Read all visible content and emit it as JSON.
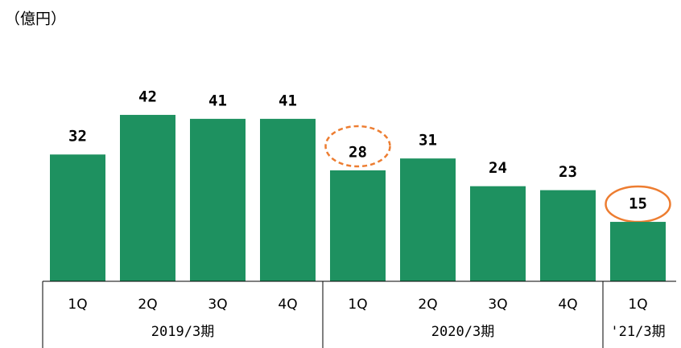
{
  "chart_data": {
    "type": "bar",
    "unit_label": "（億円）",
    "categories": [
      "1Q",
      "2Q",
      "3Q",
      "4Q",
      "1Q",
      "2Q",
      "3Q",
      "4Q",
      "1Q"
    ],
    "values": [
      32,
      42,
      41,
      41,
      28,
      31,
      24,
      23,
      15
    ],
    "groups": [
      {
        "label": "2019/3期",
        "span": [
          0,
          3
        ]
      },
      {
        "label": "2020/3期",
        "span": [
          4,
          7
        ]
      },
      {
        "label": "'21/3期",
        "span": [
          8,
          8
        ]
      }
    ],
    "color": "#1e9160",
    "ylim": [
      0,
      50
    ]
  }
}
